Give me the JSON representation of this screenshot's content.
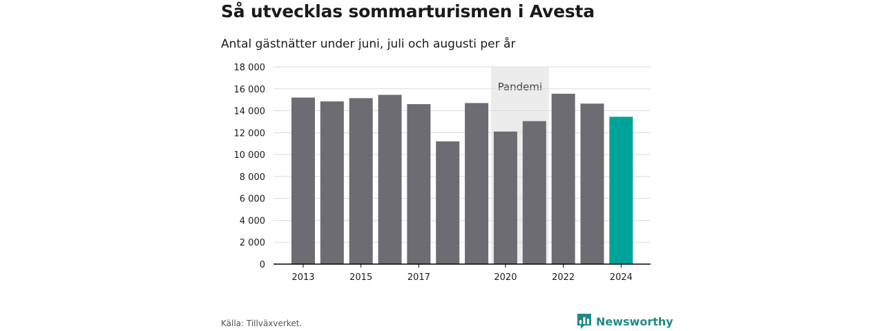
{
  "title": "Så utvecklas sommarturismen i Avesta",
  "subtitle": "Antal gästnätter under juni, juli och augusti per år",
  "source": "Källa: Tillväxverket.",
  "brand": {
    "name": "Newsworthy",
    "icon": "bar-chart-speech-bubble-icon",
    "color": "#1f8a87"
  },
  "colors": {
    "bar": "#6d6c72",
    "highlight": "#00a39a",
    "band": "#ececec",
    "grid": "#d9d9d9",
    "axis": "#000000"
  },
  "chart_data": {
    "type": "bar",
    "title": "Så utvecklas sommarturismen i Avesta",
    "subtitle": "Antal gästnätter under juni, juli och augusti per år",
    "categories": [
      "2013",
      "2014",
      "2015",
      "2016",
      "2017",
      "2018",
      "2019",
      "2020",
      "2021",
      "2022",
      "2023",
      "2024"
    ],
    "values": [
      15200,
      14850,
      15150,
      15450,
      14600,
      11200,
      14700,
      12100,
      13050,
      15550,
      14650,
      13450
    ],
    "highlight_index": 11,
    "x_tick_labels": [
      "2013",
      "2015",
      "2017",
      "2020",
      "2022",
      "2024"
    ],
    "y_ticks": [
      0,
      2000,
      4000,
      6000,
      8000,
      10000,
      12000,
      14000,
      16000,
      18000
    ],
    "y_tick_labels": [
      "0",
      "2 000",
      "4 000",
      "6 000",
      "8 000",
      "10 000",
      "12 000",
      "14 000",
      "16 000",
      "18 000"
    ],
    "ylim": [
      0,
      18000
    ],
    "grid": true,
    "annotation": {
      "label": "Pandemi",
      "from": "2020",
      "to": "2021"
    }
  }
}
